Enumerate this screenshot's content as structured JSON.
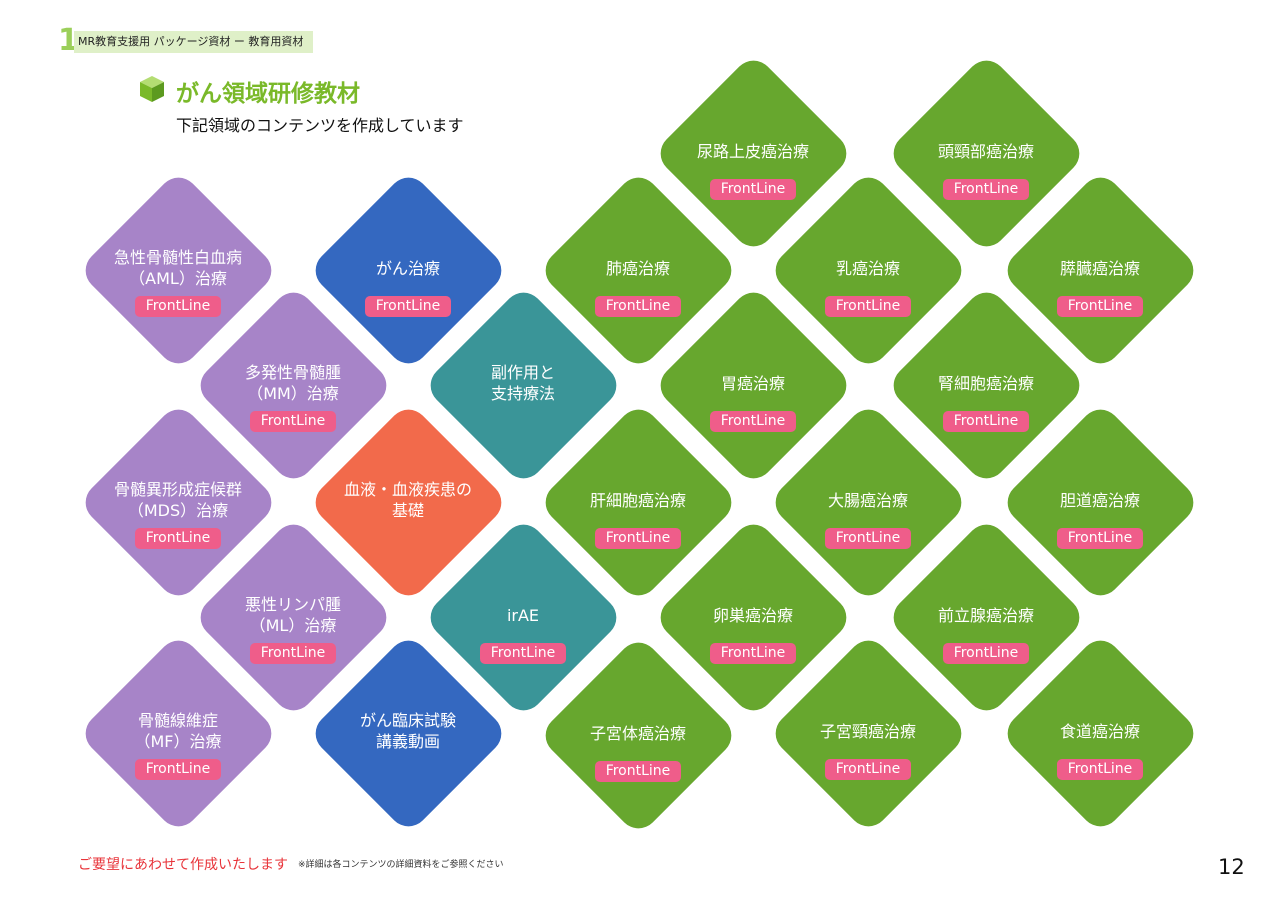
{
  "header": {
    "number": 1,
    "label": "MR教育支援用 パッケージ資材 ー 教育用資材"
  },
  "title": "がん領域研修教材",
  "subtitle": "下記領域のコンテンツを作成しています",
  "tiles": [
    {
      "lines": [
        "急性骨髄性白血病",
        "（AML）治療"
      ],
      "badge": "FrontLine"
    },
    {
      "lines": [
        "多発性骨髄腫",
        "（MM）治療"
      ],
      "badge": "FrontLine"
    },
    {
      "lines": [
        "骨髄異形成症候群",
        "（MDS）治療"
      ],
      "badge": "FrontLine"
    },
    {
      "lines": [
        "悪性リンパ腫",
        "（ML）治療"
      ],
      "badge": "FrontLine"
    },
    {
      "lines": [
        "骨髄線維症",
        "（MF）治療"
      ],
      "badge": "FrontLine"
    },
    {
      "lines": [
        "がん治療"
      ],
      "badge": "FrontLine"
    },
    {
      "lines": [
        "がん臨床試験",
        "講義動画"
      ]
    },
    {
      "lines": [
        "副作用と",
        "支持療法"
      ]
    },
    {
      "lines": [
        "irAE"
      ],
      "badge": "FrontLine"
    },
    {
      "lines": [
        "血液・血液疾患の",
        "基礎"
      ]
    },
    {
      "lines": [
        "尿路上皮癌治療"
      ],
      "badge": "FrontLine"
    },
    {
      "lines": [
        "頭頸部癌治療"
      ],
      "badge": "FrontLine"
    },
    {
      "lines": [
        "肺癌治療"
      ],
      "badge": "FrontLine"
    },
    {
      "lines": [
        "乳癌治療"
      ],
      "badge": "FrontLine"
    },
    {
      "lines": [
        "膵臓癌治療"
      ],
      "badge": "FrontLine"
    },
    {
      "lines": [
        "胃癌治療"
      ],
      "badge": "FrontLine"
    },
    {
      "lines": [
        "腎細胞癌治療"
      ],
      "badge": "FrontLine"
    },
    {
      "lines": [
        "肝細胞癌治療"
      ],
      "badge": "FrontLine"
    },
    {
      "lines": [
        "大腸癌治療"
      ],
      "badge": "FrontLine"
    },
    {
      "lines": [
        "胆道癌治療"
      ],
      "badge": "FrontLine"
    },
    {
      "lines": [
        "卵巣癌治療"
      ],
      "badge": "FrontLine"
    },
    {
      "lines": [
        "前立腺癌治療"
      ],
      "badge": "FrontLine"
    },
    {
      "lines": [
        "子宮体癌治療"
      ],
      "badge": "FrontLine"
    },
    {
      "lines": [
        "子宮頸癌治療"
      ],
      "badge": "FrontLine"
    },
    {
      "lines": [
        "食道癌治療"
      ],
      "badge": "FrontLine"
    }
  ],
  "footer": {
    "request": "ご要望にあわせて作成いたします",
    "note": "※詳細は各コンテンツの詳細資料をご参照ください",
    "page": 12
  }
}
